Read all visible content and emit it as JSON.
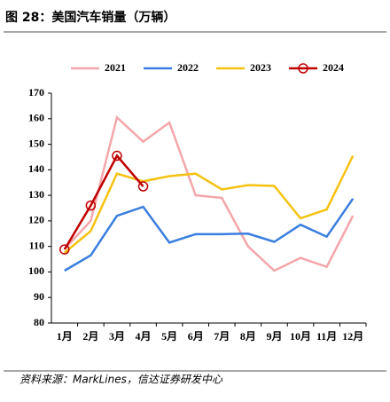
{
  "chart_data": {
    "type": "line",
    "title": "图 28：美国汽车销量（万辆）",
    "source": "资料来源：MarkLines，信达证券研发中心",
    "categories": [
      "1月",
      "2月",
      "3月",
      "4月",
      "5月",
      "6月",
      "7月",
      "8月",
      "9月",
      "10月",
      "11月",
      "12月"
    ],
    "series": [
      {
        "name": "2021",
        "color": "#f4a6aa",
        "values": [
          109,
          120,
          160.5,
          151,
          158.5,
          130,
          129,
          110,
          100.5,
          105.5,
          102,
          122
        ]
      },
      {
        "name": "2022",
        "color": "#3a7ee0",
        "values": [
          100.5,
          106.5,
          122,
          125.5,
          111.5,
          114.8,
          114.8,
          115,
          111.8,
          118.5,
          113.8,
          128.7
        ]
      },
      {
        "name": "2023",
        "color": "#f5c211",
        "values": [
          107.5,
          116,
          138.5,
          135.5,
          137.5,
          138.5,
          132.3,
          134,
          133.7,
          121,
          124.5,
          145.5
        ]
      },
      {
        "name": "2024",
        "color": "#c00000",
        "marker": "circle",
        "values": [
          108.8,
          126,
          145.5,
          133.5,
          null,
          null,
          null,
          null,
          null,
          null,
          null,
          null
        ]
      }
    ],
    "ylim": [
      80,
      170
    ],
    "yticks": [
      80,
      90,
      100,
      110,
      120,
      130,
      140,
      150,
      160,
      170
    ],
    "legend": "top"
  }
}
